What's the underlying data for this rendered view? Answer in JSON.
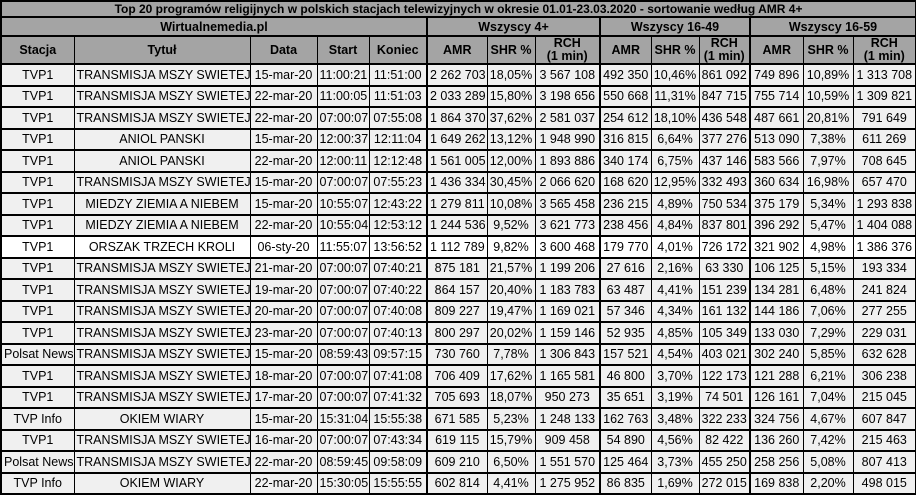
{
  "title": "Top 20 programów religijnych w polskich stacjach telewizyjnych w okresie 01.01-23.03.2020 - sortowanie według AMR 4+",
  "source_label": "Wirtualnemedia.pl",
  "audience_groups": [
    "Wszyscy 4+",
    "Wszyscy 16-49",
    "Wszyscy 16-59"
  ],
  "base_columns": [
    "Stacja",
    "Tytuł",
    "Data",
    "Start",
    "Koniec"
  ],
  "sub_columns": [
    "AMR",
    "SHR %",
    "RCH\n(1 min)"
  ],
  "highlight_row_index": 8,
  "colors": {
    "header_bg": "#a4a4a4",
    "row_bg": "#f0f0f0",
    "highlight_row_bg": "#ffffff",
    "border": "#000000",
    "text": "#000000"
  },
  "chart_data": {
    "type": "table",
    "title": "Top 20 programów religijnych w polskich stacjach telewizyjnych w okresie 01.01-23.03.2020 - sortowanie według AMR 4+",
    "column_groups": [
      {
        "label": "Wirtualnemedia.pl",
        "span": 5
      },
      {
        "label": "Wszyscy 4+",
        "span": 3
      },
      {
        "label": "Wszyscy 16-49",
        "span": 3
      },
      {
        "label": "Wszyscy 16-59",
        "span": 3
      }
    ],
    "columns": [
      "Stacja",
      "Tytuł",
      "Data",
      "Start",
      "Koniec",
      "AMR",
      "SHR %",
      "RCH (1 min)",
      "AMR",
      "SHR %",
      "RCH (1 min)",
      "AMR",
      "SHR %",
      "RCH (1 min)"
    ],
    "rows": [
      [
        "TVP1",
        "TRANSMISJA MSZY SWIETEJ",
        "15-mar-20",
        "11:00:21",
        "11:51:00",
        "2 262 703",
        "18,05%",
        "3 567 108",
        "492 350",
        "10,46%",
        "861 092",
        "749 896",
        "10,89%",
        "1 313 708"
      ],
      [
        "TVP1",
        "TRANSMISJA MSZY SWIETEJ",
        "22-mar-20",
        "11:00:05",
        "11:51:03",
        "2 033 289",
        "15,80%",
        "3 198 656",
        "550 668",
        "11,31%",
        "847 715",
        "755 714",
        "10,59%",
        "1 309 821"
      ],
      [
        "TVP1",
        "TRANSMISJA MSZY SWIETEJ",
        "22-mar-20",
        "07:00:07",
        "07:55:08",
        "1 864 370",
        "37,62%",
        "2 581 037",
        "254 612",
        "18,10%",
        "436 548",
        "487 661",
        "20,81%",
        "791 649"
      ],
      [
        "TVP1",
        "ANIOL PANSKI",
        "15-mar-20",
        "12:00:37",
        "12:11:04",
        "1 649 262",
        "13,12%",
        "1 948 990",
        "316 815",
        "6,64%",
        "377 276",
        "513 090",
        "7,38%",
        "611 269"
      ],
      [
        "TVP1",
        "ANIOL PANSKI",
        "22-mar-20",
        "12:00:11",
        "12:12:48",
        "1 561 005",
        "12,00%",
        "1 893 886",
        "340 174",
        "6,75%",
        "437 146",
        "583 566",
        "7,97%",
        "708 645"
      ],
      [
        "TVP1",
        "TRANSMISJA MSZY SWIETEJ",
        "15-mar-20",
        "07:00:07",
        "07:55:23",
        "1 436 334",
        "30,45%",
        "2 066 620",
        "168 620",
        "12,95%",
        "332 493",
        "360 634",
        "16,98%",
        "657 470"
      ],
      [
        "TVP1",
        "MIEDZY ZIEMIA A NIEBEM",
        "15-mar-20",
        "10:55:07",
        "12:43:22",
        "1 279 811",
        "10,08%",
        "3 565 458",
        "236 215",
        "4,89%",
        "750 534",
        "375 179",
        "5,34%",
        "1 293 838"
      ],
      [
        "TVP1",
        "MIEDZY ZIEMIA A NIEBEM",
        "22-mar-20",
        "10:55:04",
        "12:53:12",
        "1 244 536",
        "9,52%",
        "3 621 773",
        "238 456",
        "4,84%",
        "837 801",
        "396 292",
        "5,47%",
        "1 404 088"
      ],
      [
        "TVP1",
        "ORSZAK TRZECH KROLI",
        "06-sty-20",
        "11:55:07",
        "13:56:52",
        "1 112 789",
        "9,82%",
        "3 600 468",
        "179 770",
        "4,01%",
        "726 172",
        "321 902",
        "4,98%",
        "1 386 376"
      ],
      [
        "TVP1",
        "TRANSMISJA MSZY SWIETEJ",
        "21-mar-20",
        "07:00:07",
        "07:40:21",
        "875 181",
        "21,57%",
        "1 199 206",
        "27 616",
        "2,16%",
        "63 330",
        "106 125",
        "5,15%",
        "193 334"
      ],
      [
        "TVP1",
        "TRANSMISJA MSZY SWIETEJ",
        "19-mar-20",
        "07:00:07",
        "07:40:22",
        "864 157",
        "20,40%",
        "1 183 783",
        "63 487",
        "4,41%",
        "151 239",
        "134 281",
        "6,48%",
        "241 824"
      ],
      [
        "TVP1",
        "TRANSMISJA MSZY SWIETEJ",
        "20-mar-20",
        "07:00:07",
        "07:40:08",
        "809 227",
        "19,47%",
        "1 169 021",
        "57 346",
        "4,34%",
        "161 132",
        "144 186",
        "7,06%",
        "277 255"
      ],
      [
        "TVP1",
        "TRANSMISJA MSZY SWIETEJ",
        "23-mar-20",
        "07:00:07",
        "07:40:13",
        "800 297",
        "20,02%",
        "1 159 146",
        "52 935",
        "4,85%",
        "105 349",
        "133 030",
        "7,29%",
        "229 031"
      ],
      [
        "Polsat News",
        "TRANSMISJA MSZY SWIETEJ",
        "15-mar-20",
        "08:59:43",
        "09:57:15",
        "730 760",
        "7,78%",
        "1 306 843",
        "157 521",
        "4,54%",
        "403 021",
        "302 240",
        "5,85%",
        "632 628"
      ],
      [
        "TVP1",
        "TRANSMISJA MSZY SWIETEJ",
        "18-mar-20",
        "07:00:07",
        "07:41:08",
        "706 409",
        "17,62%",
        "1 165 581",
        "46 800",
        "3,70%",
        "122 173",
        "121 288",
        "6,21%",
        "306 238"
      ],
      [
        "TVP1",
        "TRANSMISJA MSZY SWIETEJ",
        "17-mar-20",
        "07:00:07",
        "07:41:32",
        "705 693",
        "18,07%",
        "950 273",
        "35 651",
        "3,19%",
        "74 501",
        "126 161",
        "7,04%",
        "215 045"
      ],
      [
        "TVP Info",
        "OKIEM WIARY",
        "15-mar-20",
        "15:31:04",
        "15:55:38",
        "671 585",
        "5,23%",
        "1 248 133",
        "162 763",
        "3,48%",
        "322 233",
        "324 756",
        "4,67%",
        "607 847"
      ],
      [
        "TVP1",
        "TRANSMISJA MSZY SWIETEJ",
        "16-mar-20",
        "07:00:07",
        "07:43:34",
        "619 115",
        "15,79%",
        "909 458",
        "54 890",
        "4,56%",
        "82 422",
        "136 260",
        "7,42%",
        "215 463"
      ],
      [
        "Polsat News",
        "TRANSMISJA MSZY SWIETEJ",
        "22-mar-20",
        "08:59:45",
        "09:58:09",
        "609 210",
        "6,50%",
        "1 551 570",
        "125 464",
        "3,73%",
        "455 250",
        "258 256",
        "5,08%",
        "807 413"
      ],
      [
        "TVP Info",
        "OKIEM WIARY",
        "22-mar-20",
        "15:30:05",
        "15:55:55",
        "602 814",
        "4,41%",
        "1 275 952",
        "86 835",
        "1,69%",
        "272 015",
        "169 838",
        "2,20%",
        "498 015"
      ]
    ]
  }
}
